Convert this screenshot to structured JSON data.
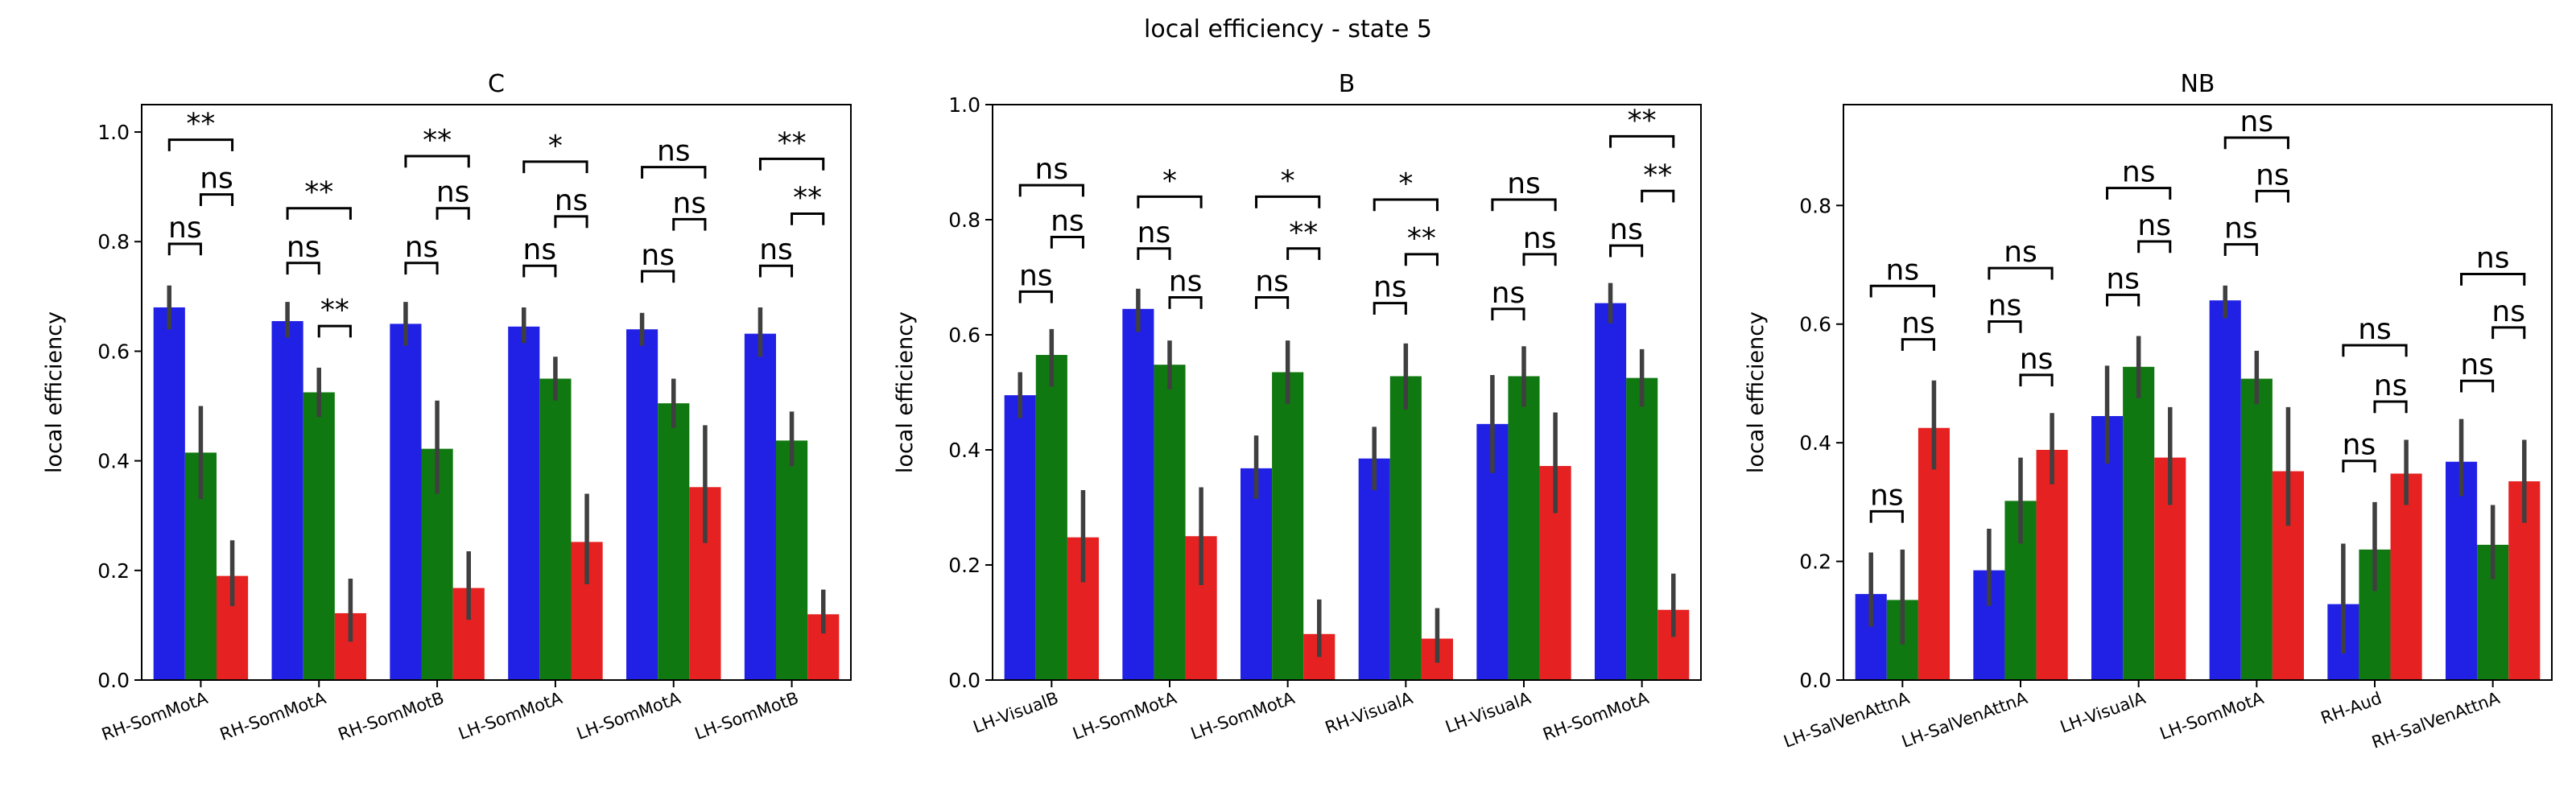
{
  "figure_title": "local efficiency - state 5",
  "colors": {
    "series": [
      "#2121e6",
      "#107810",
      "#e62121"
    ],
    "errorbar": "#3f3f3f"
  },
  "chart_data": [
    {
      "type": "bar",
      "title": "C",
      "ylabel": "local efficiency",
      "ylim": [
        0,
        1.05
      ],
      "yticks": [
        "0.0",
        "0.2",
        "0.4",
        "0.6",
        "0.8",
        "1.0"
      ],
      "categories": [
        "RH-SomMotA",
        "RH-SomMotA",
        "RH-SomMotB",
        "LH-SomMotA",
        "LH-SomMotA",
        "LH-SomMotB"
      ],
      "series": [
        {
          "values": [
            0.68,
            0.655,
            0.65,
            0.645,
            0.64,
            0.632
          ],
          "err": [
            [
              0.64,
              0.72
            ],
            [
              0.625,
              0.69
            ],
            [
              0.61,
              0.69
            ],
            [
              0.615,
              0.68
            ],
            [
              0.61,
              0.67
            ],
            [
              0.59,
              0.68
            ]
          ]
        },
        {
          "values": [
            0.415,
            0.525,
            0.422,
            0.55,
            0.505,
            0.437
          ],
          "err": [
            [
              0.33,
              0.5
            ],
            [
              0.48,
              0.57
            ],
            [
              0.34,
              0.51
            ],
            [
              0.51,
              0.59
            ],
            [
              0.46,
              0.55
            ],
            [
              0.39,
              0.49
            ]
          ]
        },
        {
          "values": [
            0.19,
            0.122,
            0.168,
            0.252,
            0.352,
            0.12
          ],
          "err": [
            [
              0.135,
              0.255
            ],
            [
              0.07,
              0.185
            ],
            [
              0.11,
              0.235
            ],
            [
              0.175,
              0.34
            ],
            [
              0.25,
              0.465
            ],
            [
              0.085,
              0.165
            ]
          ]
        }
      ],
      "annotations": [
        {
          "group": 0,
          "pair": [
            0,
            1
          ],
          "label": "ns",
          "y": 0.775
        },
        {
          "group": 0,
          "pair": [
            1,
            2
          ],
          "label": "ns",
          "y": 0.865
        },
        {
          "group": 0,
          "pair": [
            0,
            2
          ],
          "label": "**",
          "y": 0.965
        },
        {
          "group": 1,
          "pair": [
            0,
            1
          ],
          "label": "ns",
          "y": 0.74
        },
        {
          "group": 1,
          "pair": [
            1,
            2
          ],
          "label": "**",
          "y": 0.625
        },
        {
          "group": 1,
          "pair": [
            0,
            2
          ],
          "label": "**",
          "y": 0.84
        },
        {
          "group": 2,
          "pair": [
            0,
            1
          ],
          "label": "ns",
          "y": 0.74
        },
        {
          "group": 2,
          "pair": [
            1,
            2
          ],
          "label": "ns",
          "y": 0.84
        },
        {
          "group": 2,
          "pair": [
            0,
            2
          ],
          "label": "**",
          "y": 0.935
        },
        {
          "group": 3,
          "pair": [
            0,
            1
          ],
          "label": "ns",
          "y": 0.735
        },
        {
          "group": 3,
          "pair": [
            1,
            2
          ],
          "label": "ns",
          "y": 0.825
        },
        {
          "group": 3,
          "pair": [
            0,
            2
          ],
          "label": "*",
          "y": 0.925
        },
        {
          "group": 4,
          "pair": [
            0,
            1
          ],
          "label": "ns",
          "y": 0.725
        },
        {
          "group": 4,
          "pair": [
            1,
            2
          ],
          "label": "ns",
          "y": 0.82
        },
        {
          "group": 4,
          "pair": [
            0,
            2
          ],
          "label": "ns",
          "y": 0.915
        },
        {
          "group": 5,
          "pair": [
            0,
            1
          ],
          "label": "ns",
          "y": 0.735
        },
        {
          "group": 5,
          "pair": [
            1,
            2
          ],
          "label": "**",
          "y": 0.83
        },
        {
          "group": 5,
          "pair": [
            0,
            2
          ],
          "label": "**",
          "y": 0.93
        }
      ]
    },
    {
      "type": "bar",
      "title": "B",
      "ylabel": "local efficiency",
      "ylim": [
        0,
        1.0
      ],
      "yticks": [
        "0.0",
        "0.2",
        "0.4",
        "0.6",
        "0.8",
        "1.0"
      ],
      "categories": [
        "LH-VisualB",
        "LH-SomMotA",
        "LH-SomMotA",
        "RH-VisualA",
        "LH-VisualA",
        "RH-SomMotA"
      ],
      "series": [
        {
          "values": [
            0.495,
            0.645,
            0.368,
            0.385,
            0.445,
            0.655
          ],
          "err": [
            [
              0.455,
              0.535
            ],
            [
              0.605,
              0.68
            ],
            [
              0.315,
              0.425
            ],
            [
              0.33,
              0.44
            ],
            [
              0.36,
              0.53
            ],
            [
              0.62,
              0.69
            ]
          ]
        },
        {
          "values": [
            0.565,
            0.548,
            0.535,
            0.528,
            0.528,
            0.525
          ],
          "err": [
            [
              0.51,
              0.61
            ],
            [
              0.505,
              0.59
            ],
            [
              0.48,
              0.59
            ],
            [
              0.47,
              0.585
            ],
            [
              0.475,
              0.58
            ],
            [
              0.475,
              0.575
            ]
          ]
        },
        {
          "values": [
            0.248,
            0.25,
            0.08,
            0.072,
            0.372,
            0.122
          ],
          "err": [
            [
              0.17,
              0.33
            ],
            [
              0.165,
              0.335
            ],
            [
              0.04,
              0.14
            ],
            [
              0.03,
              0.125
            ],
            [
              0.29,
              0.465
            ],
            [
              0.075,
              0.185
            ]
          ]
        }
      ],
      "annotations": [
        {
          "group": 0,
          "pair": [
            0,
            1
          ],
          "label": "ns",
          "y": 0.655
        },
        {
          "group": 0,
          "pair": [
            1,
            2
          ],
          "label": "ns",
          "y": 0.75
        },
        {
          "group": 0,
          "pair": [
            0,
            2
          ],
          "label": "ns",
          "y": 0.84
        },
        {
          "group": 1,
          "pair": [
            0,
            1
          ],
          "label": "ns",
          "y": 0.73
        },
        {
          "group": 1,
          "pair": [
            1,
            2
          ],
          "label": "ns",
          "y": 0.645
        },
        {
          "group": 1,
          "pair": [
            0,
            2
          ],
          "label": "*",
          "y": 0.82
        },
        {
          "group": 2,
          "pair": [
            0,
            1
          ],
          "label": "ns",
          "y": 0.645
        },
        {
          "group": 2,
          "pair": [
            1,
            2
          ],
          "label": "**",
          "y": 0.73
        },
        {
          "group": 2,
          "pair": [
            0,
            2
          ],
          "label": "*",
          "y": 0.82
        },
        {
          "group": 3,
          "pair": [
            0,
            1
          ],
          "label": "ns",
          "y": 0.635
        },
        {
          "group": 3,
          "pair": [
            1,
            2
          ],
          "label": "**",
          "y": 0.72
        },
        {
          "group": 3,
          "pair": [
            0,
            2
          ],
          "label": "*",
          "y": 0.815
        },
        {
          "group": 4,
          "pair": [
            0,
            1
          ],
          "label": "ns",
          "y": 0.625
        },
        {
          "group": 4,
          "pair": [
            1,
            2
          ],
          "label": "ns",
          "y": 0.72
        },
        {
          "group": 4,
          "pair": [
            0,
            2
          ],
          "label": "ns",
          "y": 0.815
        },
        {
          "group": 5,
          "pair": [
            0,
            1
          ],
          "label": "ns",
          "y": 0.735
        },
        {
          "group": 5,
          "pair": [
            1,
            2
          ],
          "label": "**",
          "y": 0.83
        },
        {
          "group": 5,
          "pair": [
            0,
            2
          ],
          "label": "**",
          "y": 0.925
        }
      ]
    },
    {
      "type": "bar",
      "title": "NB",
      "ylabel": "local efficiency",
      "ylim": [
        0,
        0.97
      ],
      "yticks": [
        "0.0",
        "0.2",
        "0.4",
        "0.6",
        "0.8"
      ],
      "categories": [
        "LH-SalVenAttnA",
        "LH-SalVenAttnA",
        "LH-VisualA",
        "LH-SomMotA",
        "RH-Aud",
        "RH-SalVenAttnA"
      ],
      "series": [
        {
          "values": [
            0.145,
            0.185,
            0.445,
            0.64,
            0.128,
            0.368
          ],
          "err": [
            [
              0.09,
              0.215
            ],
            [
              0.125,
              0.255
            ],
            [
              0.365,
              0.53
            ],
            [
              0.61,
              0.665
            ],
            [
              0.045,
              0.23
            ],
            [
              0.31,
              0.44
            ]
          ]
        },
        {
          "values": [
            0.135,
            0.302,
            0.528,
            0.508,
            0.22,
            0.228
          ],
          "err": [
            [
              0.06,
              0.22
            ],
            [
              0.23,
              0.375
            ],
            [
              0.475,
              0.58
            ],
            [
              0.465,
              0.555
            ],
            [
              0.15,
              0.3
            ],
            [
              0.17,
              0.295
            ]
          ]
        },
        {
          "values": [
            0.425,
            0.388,
            0.375,
            0.352,
            0.348,
            0.335
          ],
          "err": [
            [
              0.355,
              0.505
            ],
            [
              0.33,
              0.45
            ],
            [
              0.295,
              0.46
            ],
            [
              0.26,
              0.46
            ],
            [
              0.295,
              0.405
            ],
            [
              0.265,
              0.405
            ]
          ]
        }
      ],
      "annotations": [
        {
          "group": 0,
          "pair": [
            0,
            1
          ],
          "label": "ns",
          "y": 0.265
        },
        {
          "group": 0,
          "pair": [
            1,
            2
          ],
          "label": "ns",
          "y": 0.555
        },
        {
          "group": 0,
          "pair": [
            0,
            2
          ],
          "label": "ns",
          "y": 0.645
        },
        {
          "group": 1,
          "pair": [
            0,
            1
          ],
          "label": "ns",
          "y": 0.585
        },
        {
          "group": 1,
          "pair": [
            1,
            2
          ],
          "label": "ns",
          "y": 0.495
        },
        {
          "group": 1,
          "pair": [
            0,
            2
          ],
          "label": "ns",
          "y": 0.675
        },
        {
          "group": 2,
          "pair": [
            0,
            1
          ],
          "label": "ns",
          "y": 0.63
        },
        {
          "group": 2,
          "pair": [
            1,
            2
          ],
          "label": "ns",
          "y": 0.72
        },
        {
          "group": 2,
          "pair": [
            0,
            2
          ],
          "label": "ns",
          "y": 0.81
        },
        {
          "group": 3,
          "pair": [
            0,
            1
          ],
          "label": "ns",
          "y": 0.715
        },
        {
          "group": 3,
          "pair": [
            1,
            2
          ],
          "label": "ns",
          "y": 0.805
        },
        {
          "group": 3,
          "pair": [
            0,
            2
          ],
          "label": "ns",
          "y": 0.895
        },
        {
          "group": 4,
          "pair": [
            0,
            1
          ],
          "label": "ns",
          "y": 0.35
        },
        {
          "group": 4,
          "pair": [
            1,
            2
          ],
          "label": "ns",
          "y": 0.45
        },
        {
          "group": 4,
          "pair": [
            0,
            2
          ],
          "label": "ns",
          "y": 0.545
        },
        {
          "group": 5,
          "pair": [
            0,
            1
          ],
          "label": "ns",
          "y": 0.485
        },
        {
          "group": 5,
          "pair": [
            1,
            2
          ],
          "label": "ns",
          "y": 0.575
        },
        {
          "group": 5,
          "pair": [
            0,
            2
          ],
          "label": "ns",
          "y": 0.665
        }
      ]
    }
  ]
}
